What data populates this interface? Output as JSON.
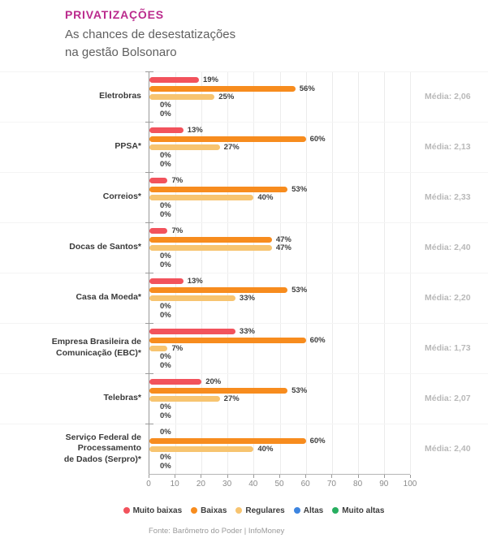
{
  "header": {
    "title": "PRIVATIZAÇÕES",
    "subtitle_line1": "As chances de desestatizações",
    "subtitle_line2": "na gestão Bolsonaro"
  },
  "chart_data": {
    "type": "bar",
    "orientation": "horizontal",
    "title": "PRIVATIZAÇÕES — As chances de desestatizações na gestão Bolsonaro",
    "value_unit": "%",
    "xlim": [
      0,
      100
    ],
    "x_ticks": [
      0,
      10,
      20,
      30,
      40,
      50,
      60,
      70,
      80,
      90,
      100
    ],
    "grid": true,
    "legend_position": "bottom",
    "series": [
      {
        "name": "Muito baixas",
        "color": "#f2525c"
      },
      {
        "name": "Baixas",
        "color": "#f78c1e"
      },
      {
        "name": "Regulares",
        "color": "#f7c470"
      },
      {
        "name": "Altas",
        "color": "#3d85e0"
      },
      {
        "name": "Muito altas",
        "color": "#27ae60"
      }
    ],
    "categories": [
      "Eletrobras",
      "PPSA*",
      "Correios*",
      "Docas de Santos*",
      "Casa da Moeda*",
      "Empresa Brasileira de Comunicação (EBC)*",
      "Telebras*",
      "Serviço Federal de Processamento de Dados (Serpro)*"
    ],
    "rows": [
      {
        "label_lines": [
          "Eletrobras"
        ],
        "values": [
          19,
          56,
          25,
          0,
          0
        ],
        "media": "Média: 2,06"
      },
      {
        "label_lines": [
          "PPSA*"
        ],
        "values": [
          13,
          60,
          27,
          0,
          0
        ],
        "media": "Média: 2,13"
      },
      {
        "label_lines": [
          "Correios*"
        ],
        "values": [
          7,
          53,
          40,
          0,
          0
        ],
        "media": "Média: 2,33"
      },
      {
        "label_lines": [
          "Docas de Santos*"
        ],
        "values": [
          7,
          47,
          47,
          0,
          0
        ],
        "media": "Média: 2,40"
      },
      {
        "label_lines": [
          "Casa da Moeda*"
        ],
        "values": [
          13,
          53,
          33,
          0,
          0
        ],
        "media": "Média: 2,20"
      },
      {
        "label_lines": [
          "Empresa Brasileira de",
          "Comunicação (EBC)*"
        ],
        "values": [
          33,
          60,
          7,
          0,
          0
        ],
        "media": "Média: 1,73"
      },
      {
        "label_lines": [
          "Telebras*"
        ],
        "values": [
          20,
          53,
          27,
          0,
          0
        ],
        "media": "Média: 2,07"
      },
      {
        "label_lines": [
          "Serviço Federal de Processamento",
          "de Dados (Serpro)*"
        ],
        "values": [
          0,
          60,
          40,
          0,
          0
        ],
        "media": "Média: 2,40"
      }
    ]
  },
  "footer": {
    "source": "Fonte: Barômetro do Poder | InfoMoney"
  }
}
